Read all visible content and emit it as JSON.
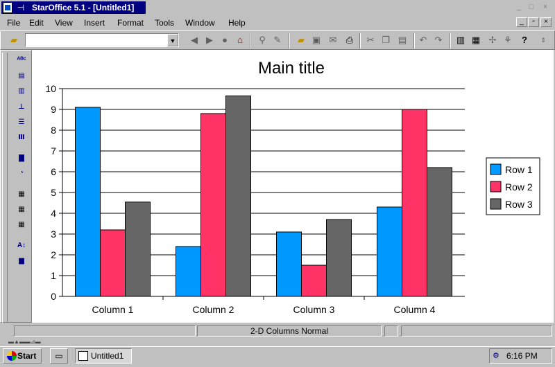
{
  "window": {
    "title": "StarOffice 5.1 - [Untitled1]"
  },
  "menu": [
    "File",
    "Edit",
    "View",
    "Insert",
    "Format",
    "Tools",
    "Window",
    "Help"
  ],
  "toolbar": {
    "url_value": ""
  },
  "status": {
    "text": "2-D Columns Normal"
  },
  "taskbar": {
    "start_label": "Start",
    "task_label": "Untitled1",
    "clock": "6:16 PM"
  },
  "colors": {
    "row1": "#0099ff",
    "row2": "#ff3366",
    "row3": "#666666"
  },
  "chart_data": {
    "type": "bar",
    "title": "Main title",
    "categories": [
      "Column 1",
      "Column 2",
      "Column 3",
      "Column 4"
    ],
    "series": [
      {
        "name": "Row 1",
        "values": [
          9.1,
          2.4,
          3.1,
          4.3
        ]
      },
      {
        "name": "Row 2",
        "values": [
          3.2,
          8.8,
          1.5,
          9.0
        ]
      },
      {
        "name": "Row 3",
        "values": [
          4.54,
          9.65,
          3.7,
          6.2
        ]
      }
    ],
    "ylim": [
      0,
      10
    ],
    "yticks": [
      "0",
      "1",
      "2",
      "3",
      "4",
      "5",
      "6",
      "7",
      "8",
      "9",
      "10"
    ],
    "grid": true,
    "legend": "right"
  }
}
